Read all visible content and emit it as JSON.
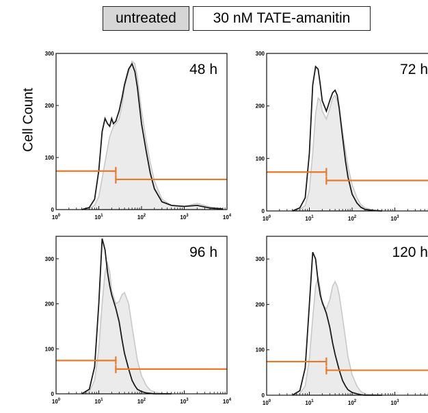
{
  "legend": {
    "untreated": "untreated",
    "treated": "30 nM TATE-amanitin"
  },
  "chart_data": {
    "type": "area",
    "ylabel": "Cell Count",
    "x_scale": "log",
    "xlim": [
      1,
      10000
    ],
    "x_ticks": [
      "0",
      "1",
      "2",
      "3",
      "4"
    ],
    "colors": {
      "untreated_fill": "#ebebeb",
      "untreated_line": "#c8c8c8",
      "treated_line": "#1a1a1a",
      "gate": "#e8782a"
    },
    "panels": [
      {
        "label": "48 h",
        "ylim": [
          0,
          300
        ],
        "yticks": [
          0,
          100,
          200,
          300
        ],
        "untreated": {
          "x": [
            4,
            6,
            8,
            10,
            12,
            15,
            18,
            22,
            25,
            30,
            35,
            40,
            50,
            60,
            70,
            80,
            100,
            130,
            160,
            200,
            300,
            500,
            1000,
            2000,
            4000,
            8000
          ],
          "y": [
            0,
            2,
            8,
            25,
            60,
            105,
            140,
            160,
            165,
            175,
            200,
            235,
            265,
            285,
            280,
            255,
            190,
            130,
            90,
            55,
            20,
            8,
            6,
            12,
            5,
            2
          ]
        },
        "treated": {
          "x": [
            4,
            6,
            8,
            10,
            12,
            14,
            16,
            18,
            20,
            22,
            25,
            30,
            35,
            40,
            50,
            60,
            70,
            80,
            100,
            130,
            160,
            200,
            300,
            500,
            1000,
            2000,
            4000,
            8000
          ],
          "y": [
            0,
            4,
            20,
            75,
            150,
            175,
            165,
            160,
            175,
            165,
            170,
            190,
            215,
            240,
            270,
            280,
            265,
            235,
            165,
            110,
            70,
            40,
            15,
            8,
            6,
            8,
            3,
            1
          ]
        },
        "gates": [
          {
            "x": [
              1,
              25
            ],
            "y": 74
          },
          {
            "x": [
              25,
              10000
            ],
            "y": 58
          }
        ]
      },
      {
        "label": "72 h",
        "ylim": [
          0,
          300
        ],
        "yticks": [
          0,
          100,
          200,
          300
        ],
        "untreated": {
          "x": [
            4,
            6,
            8,
            10,
            12,
            14,
            16,
            18,
            20,
            25,
            30,
            35,
            40,
            45,
            50,
            60,
            70,
            80,
            100,
            130,
            160,
            200,
            300,
            500
          ],
          "y": [
            0,
            3,
            10,
            40,
            110,
            185,
            215,
            210,
            190,
            175,
            195,
            215,
            220,
            210,
            195,
            150,
            115,
            85,
            50,
            25,
            12,
            6,
            2,
            0
          ]
        },
        "treated": {
          "x": [
            4,
            6,
            8,
            10,
            12,
            14,
            16,
            18,
            20,
            25,
            30,
            35,
            40,
            45,
            50,
            60,
            70,
            80,
            100,
            130,
            160,
            200,
            300,
            500
          ],
          "y": [
            0,
            6,
            25,
            110,
            240,
            275,
            270,
            240,
            210,
            190,
            210,
            225,
            230,
            220,
            195,
            140,
            95,
            65,
            32,
            15,
            7,
            3,
            1,
            0
          ]
        },
        "gates": [
          {
            "x": [
              1,
              25
            ],
            "y": 74
          },
          {
            "x": [
              25,
              10000
            ],
            "y": 58
          }
        ]
      },
      {
        "label": "96 h",
        "ylim": [
          0,
          350
        ],
        "yticks": [
          0,
          100,
          200,
          300
        ],
        "untreated": {
          "x": [
            4,
            6,
            8,
            10,
            12,
            14,
            16,
            18,
            20,
            25,
            30,
            35,
            40,
            50,
            60,
            70,
            80,
            100,
            130,
            160,
            200,
            300,
            500
          ],
          "y": [
            0,
            5,
            30,
            100,
            200,
            270,
            290,
            270,
            230,
            200,
            205,
            220,
            225,
            200,
            150,
            110,
            75,
            40,
            18,
            8,
            4,
            1,
            0
          ]
        },
        "treated": {
          "x": [
            4,
            6,
            8,
            10,
            12,
            14,
            16,
            18,
            20,
            25,
            30,
            35,
            40,
            50,
            60,
            70,
            80,
            100,
            130,
            160,
            200,
            300,
            500
          ],
          "y": [
            0,
            10,
            60,
            200,
            345,
            320,
            270,
            240,
            220,
            190,
            160,
            120,
            90,
            55,
            30,
            18,
            10,
            5,
            2,
            1,
            0,
            0,
            0
          ]
        },
        "gates": [
          {
            "x": [
              1,
              25
            ],
            "y": 74
          },
          {
            "x": [
              25,
              10000
            ],
            "y": 55
          }
        ]
      },
      {
        "label": "120 h",
        "ylim": [
          0,
          350
        ],
        "yticks": [
          0,
          100,
          200,
          300
        ],
        "untreated": {
          "x": [
            4,
            6,
            8,
            10,
            12,
            14,
            16,
            18,
            20,
            25,
            30,
            35,
            40,
            45,
            50,
            60,
            70,
            80,
            100,
            130,
            160,
            200,
            300,
            500
          ],
          "y": [
            0,
            4,
            20,
            80,
            170,
            240,
            260,
            235,
            200,
            190,
            210,
            240,
            250,
            240,
            220,
            170,
            125,
            85,
            45,
            20,
            8,
            3,
            1,
            0
          ]
        },
        "treated": {
          "x": [
            4,
            6,
            8,
            10,
            12,
            14,
            16,
            18,
            20,
            25,
            30,
            35,
            40,
            50,
            60,
            70,
            80,
            100,
            130,
            160,
            200,
            300,
            500
          ],
          "y": [
            0,
            10,
            60,
            200,
            315,
            300,
            250,
            220,
            205,
            180,
            150,
            115,
            90,
            55,
            32,
            20,
            12,
            6,
            3,
            1,
            0,
            0,
            0
          ]
        },
        "gates": [
          {
            "x": [
              1,
              25
            ],
            "y": 74
          },
          {
            "x": [
              25,
              10000
            ],
            "y": 55
          }
        ]
      }
    ]
  }
}
